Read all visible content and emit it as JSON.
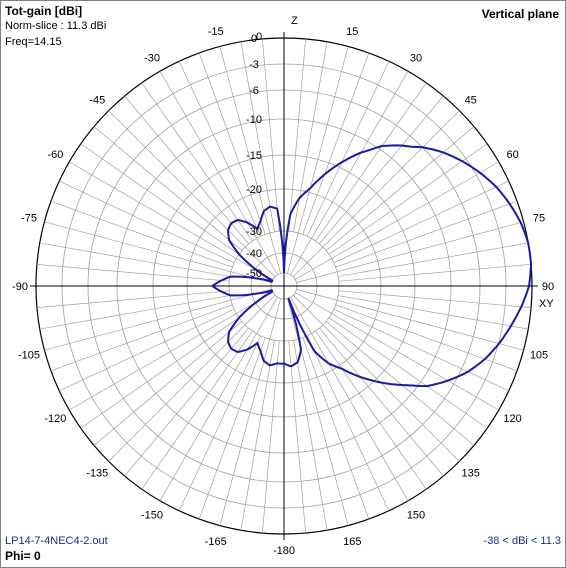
{
  "header": {
    "title": "Tot-gain [dBi]",
    "norm_slice": "Norm-slice : 11.3 dBi",
    "freq": "Freq=14.15",
    "plane": "Vertical plane"
  },
  "footer": {
    "filename": "LP14-7-4NEC4-2.out",
    "phi": "Phi= 0",
    "range": "-38 < dBi < 11.3"
  },
  "colors": {
    "pattern": "#1a1aa6",
    "grid": "#a0a0a0",
    "axis": "#000000"
  },
  "axis_labels": {
    "top": "Z",
    "right": "XY"
  },
  "angle_labels": [
    "0",
    "15",
    "30",
    "45",
    "60",
    "75",
    "90",
    "105",
    "120",
    "135",
    "150",
    "165",
    "-180",
    "-165",
    "-150",
    "-135",
    "-120",
    "-105",
    "-90",
    "-75",
    "-60",
    "-45",
    "-30",
    "-15"
  ],
  "ring_labels": [
    "0",
    "-3",
    "-6",
    "-10",
    "-15",
    "-20",
    "-30",
    "-40",
    "-50"
  ],
  "chart_data": {
    "type": "polar",
    "title": "Tot-gain [dBi]",
    "subtitle": "Vertical plane",
    "rings_db": [
      0,
      -3,
      -6,
      -10,
      -15,
      -20,
      -30,
      -40,
      -50
    ],
    "angle_step_deg": 15,
    "pattern": {
      "theta_deg": [
        0,
        5,
        10,
        15,
        20,
        25,
        30,
        35,
        40,
        45,
        50,
        55,
        60,
        65,
        70,
        75,
        80,
        85,
        90,
        95,
        100,
        105,
        110,
        115,
        120,
        125,
        130,
        135,
        140,
        145,
        150,
        155,
        160,
        165,
        170,
        175,
        180,
        -175,
        -170,
        -165,
        -160,
        -155,
        -150,
        -145,
        -140,
        -135,
        -130,
        -125,
        -120,
        -115,
        -110,
        -105,
        -100,
        -95,
        -90,
        -85,
        -80,
        -75,
        -70,
        -65,
        -60,
        -55,
        -50,
        -45,
        -40,
        -35,
        -30,
        -25,
        -20,
        -15,
        -10,
        -5
      ],
      "gain_db": [
        -50,
        -30,
        -24,
        -20,
        -17,
        -14,
        -11,
        -8.5,
        -6.8,
        -5.3,
        -4.1,
        -3.1,
        -2.2,
        -1.4,
        -0.8,
        -0.3,
        0,
        0,
        -0.3,
        -1,
        -1.8,
        -2.6,
        -3.5,
        -4.6,
        -6,
        -8,
        -11,
        -14,
        -17,
        -20,
        -24,
        -30,
        -50,
        -32,
        -28,
        -27,
        -28,
        -28,
        -27,
        -28,
        -31,
        -33,
        -29.5,
        -27,
        -26.5,
        -27.5,
        -30,
        -36,
        -44,
        -50,
        -50,
        -44,
        -36,
        -33,
        -30,
        -33,
        -36,
        -44,
        -50,
        -50,
        -44,
        -36,
        -30,
        -27.5,
        -26.5,
        -27,
        -29.5,
        -33,
        -31,
        -28,
        -27,
        -28
      ]
    }
  }
}
